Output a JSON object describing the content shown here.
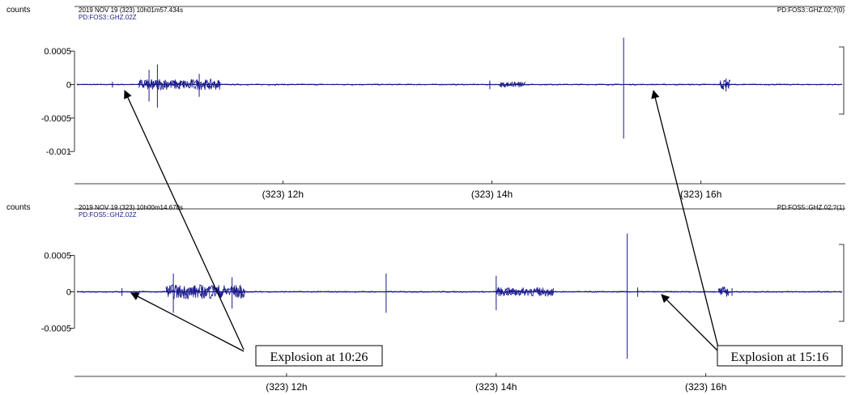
{
  "chart_data": [
    {
      "type": "line",
      "ylabel": "counts",
      "header_time": "2019 NOV 19 (323) 10h01m57.434s",
      "station_label": "PD:FOS3::GHZ.02Z",
      "channel_right": "PD:FOS3::GHZ.02;?(0)",
      "yticks": [
        0.0005,
        0,
        -0.0005,
        -0.001
      ],
      "ytick_labels": [
        "0.0005",
        "0",
        "-0.0005",
        "-0.001"
      ],
      "ylim": [
        -0.0013,
        0.0009
      ],
      "xtick_labels": [
        "(323) 12h",
        "(323) 14h",
        "(323) 16h"
      ],
      "xticks_hours": [
        12,
        14,
        16
      ],
      "xlim_hours": [
        10.03,
        17.35
      ],
      "spikes": [
        {
          "t": 10.37,
          "amp": 4e-05
        },
        {
          "t": 10.72,
          "amp": 0.00022
        },
        {
          "t": 10.8,
          "amp": 0.0003
        },
        {
          "t": 11.2,
          "amp": 0.00016
        },
        {
          "t": 13.98,
          "amp": 6e-05
        },
        {
          "t": 15.26,
          "amp": 0.0007
        },
        {
          "t": 16.24,
          "amp": 9e-05
        }
      ],
      "bursts": [
        {
          "t0": 10.62,
          "t1": 11.4,
          "amp": 8e-05
        },
        {
          "t0": 14.08,
          "t1": 14.32,
          "amp": 4e-05
        },
        {
          "t0": 16.18,
          "t1": 16.28,
          "amp": 7e-05
        }
      ]
    },
    {
      "type": "line",
      "ylabel": "counts",
      "header_time": "2019 NOV 19 (323) 10h00m14.670s",
      "station_label": "PD:FOS5::GHZ.02Z",
      "channel_right": "PD:FOS5::GHZ.02;?(1)",
      "yticks": [
        0.0005,
        0,
        -0.0005
      ],
      "ytick_labels": [
        "0.0005",
        "0",
        "-0.0005"
      ],
      "ylim": [
        -0.00095,
        0.00095
      ],
      "xtick_labels": [
        "(323) 12h",
        "(323) 14h",
        "(323) 16h"
      ],
      "xticks_hours": [
        12,
        14,
        16
      ],
      "xlim_hours": [
        10.0,
        17.3
      ],
      "spikes": [
        {
          "t": 10.43,
          "amp": 5e-05
        },
        {
          "t": 10.92,
          "amp": 0.00025
        },
        {
          "t": 11.48,
          "amp": 0.0002
        },
        {
          "t": 12.95,
          "amp": 0.00025
        },
        {
          "t": 14.0,
          "amp": 0.00022
        },
        {
          "t": 15.25,
          "amp": 0.0008
        },
        {
          "t": 15.35,
          "amp": 6e-05
        },
        {
          "t": 16.25,
          "amp": 5e-05
        }
      ],
      "bursts": [
        {
          "t0": 10.85,
          "t1": 11.6,
          "amp": 0.0001
        },
        {
          "t0": 14.0,
          "t1": 14.55,
          "amp": 6e-05
        },
        {
          "t0": 16.12,
          "t1": 16.22,
          "amp": 7e-05
        }
      ]
    }
  ],
  "annotations": [
    {
      "text": "Explosion at 10:26"
    },
    {
      "text": "Explosion at 15:16"
    }
  ],
  "colors": {
    "trace": "#1a1a8c",
    "axis": "#000000",
    "label_blue": "#1a1a8c",
    "arrow": "#000000"
  }
}
